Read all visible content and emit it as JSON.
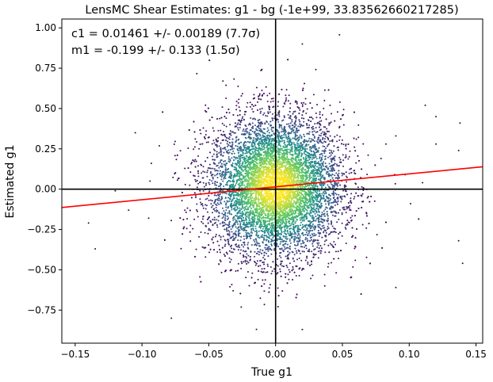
{
  "chart_data": {
    "type": "scatter",
    "title": "LensMC Shear Estimates: g1  - bg (-1e+99, 33.83562660217285)",
    "xlabel": "True g1",
    "ylabel": "Estimated g1",
    "xlim": [
      -0.16,
      0.155
    ],
    "ylim": [
      -0.955,
      1.055
    ],
    "xticks": [
      -0.15,
      -0.1,
      -0.05,
      0.0,
      0.05,
      0.1,
      0.15
    ],
    "xtick_labels": [
      "−0.15",
      "−0.10",
      "−0.05",
      "0.00",
      "0.05",
      "0.10",
      "0.15"
    ],
    "yticks": [
      -0.75,
      -0.5,
      -0.25,
      0.0,
      0.25,
      0.5,
      0.75,
      1.0
    ],
    "ytick_labels": [
      "−0.75",
      "−0.50",
      "−0.25",
      "0.00",
      "0.25",
      "0.50",
      "0.75",
      "1.00"
    ],
    "annotations": [
      "c1 = 0.01461 +/- 0.00189 (7.7σ)",
      "m1 = -0.199 +/- 0.133 (1.5σ)"
    ],
    "fit_line": {
      "intercept": 0.01461,
      "slope": 0.801
    },
    "reference_lines": {
      "x": 0,
      "y": 0
    },
    "scatter": {
      "n_points": 9000,
      "x_std": 0.025,
      "y_std": 0.22,
      "colormap": "viridis",
      "color_by": "density",
      "outliers": [
        [
          -0.135,
          -0.37
        ],
        [
          -0.14,
          -0.21
        ],
        [
          -0.12,
          -0.01
        ],
        [
          -0.105,
          0.35
        ],
        [
          -0.093,
          0.16
        ],
        [
          -0.11,
          -0.13
        ],
        [
          -0.095,
          -0.18
        ],
        [
          0.112,
          0.52
        ],
        [
          0.12,
          0.45
        ],
        [
          0.138,
          0.41
        ],
        [
          0.137,
          0.24
        ],
        [
          0.14,
          -0.46
        ],
        [
          0.137,
          -0.32
        ],
        [
          0.11,
          0.04
        ],
        [
          0.097,
          0.09
        ],
        [
          0.101,
          -0.09
        ],
        [
          0.09,
          -0.61
        ],
        [
          0.09,
          0.33
        ],
        [
          0.12,
          0.28
        ],
        [
          0.02,
          0.9
        ],
        [
          -0.078,
          -0.8
        ],
        [
          0.02,
          -0.87
        ]
      ]
    },
    "colors": {
      "fit_line": "#ff0000",
      "axes_lines": "#000000",
      "viridis_low": "#440154",
      "viridis_high": "#fde725"
    },
    "grid": false,
    "legend": "none"
  }
}
